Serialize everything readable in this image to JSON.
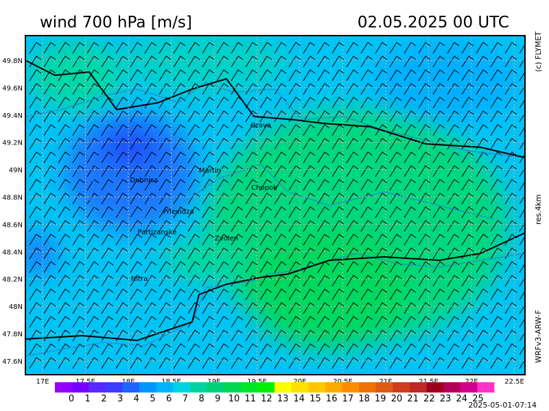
{
  "header": {
    "title": "wind 700 hPa [m/s]",
    "datetime": "02.05.2025   00 UTC"
  },
  "side_labels": {
    "copyright": "(c) FLYMET",
    "resolution": "res.4km",
    "model": "WRFv3-ARW-F"
  },
  "map": {
    "lat_ticks": [
      "49.8N",
      "49.6N",
      "49.4N",
      "49.2N",
      "49N",
      "48.8N",
      "48.6N",
      "48.4N",
      "48.2N",
      "48N",
      "47.8N",
      "47.6N"
    ],
    "lon_ticks": [
      "17E",
      "17.5E",
      "18E",
      "18.5E",
      "19E",
      "19.5E",
      "20E",
      "20.5E",
      "21E",
      "21.5E",
      "22E",
      "22.5E"
    ],
    "places": [
      "Orava",
      "Martin",
      "Dubnica",
      "Chopok",
      "Prievidza",
      "Partizanske",
      "Zvolen",
      "Nitra"
    ]
  },
  "colorbar": {
    "labels": [
      "0",
      "1",
      "2",
      "3",
      "4",
      "5",
      "6",
      "7",
      "8",
      "9",
      "10",
      "11",
      "12",
      "13",
      "14",
      "15",
      "16",
      "17",
      "18",
      "19",
      "20",
      "21",
      "22",
      "23",
      "24",
      "25"
    ],
    "colors": [
      "#9600ff",
      "#7800ff",
      "#5a28ff",
      "#3c3cff",
      "#1e64ff",
      "#0096ff",
      "#00b4ff",
      "#00d2e6",
      "#00d2a0",
      "#00d278",
      "#00d850",
      "#00e628",
      "#00f000",
      "#ffff00",
      "#ffe100",
      "#ffc800",
      "#ffaa00",
      "#ff8c00",
      "#f07000",
      "#e05a14",
      "#d23c1e",
      "#be2828",
      "#a0001e",
      "#b4005a",
      "#d2008c",
      "#ff32c8"
    ]
  },
  "timestamp": "2025-05-01-07:14"
}
